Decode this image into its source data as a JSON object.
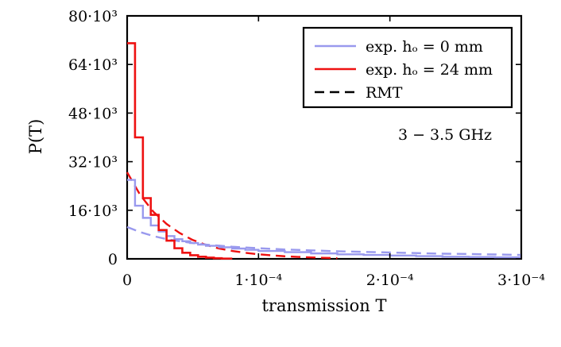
{
  "chart_data": {
    "type": "line",
    "xlabel": "transmission T",
    "ylabel": "P(T)",
    "xlim": [
      0,
      0.0003
    ],
    "ylim": [
      0,
      80000
    ],
    "x_ticks": [
      {
        "value": 0,
        "label": "0"
      },
      {
        "value": 0.0001,
        "label": "1·10⁻⁴"
      },
      {
        "value": 0.0002,
        "label": "2·10⁻⁴"
      },
      {
        "value": 0.0003,
        "label": "3·10⁻⁴"
      }
    ],
    "y_ticks": [
      {
        "value": 0,
        "label": "0"
      },
      {
        "value": 16000,
        "label": "16·10³"
      },
      {
        "value": 32000,
        "label": "32·10³"
      },
      {
        "value": 48000,
        "label": "48·10³"
      },
      {
        "value": 64000,
        "label": "64·10³"
      },
      {
        "value": 80000,
        "label": "80·10³"
      }
    ],
    "annotation": "3 − 3.5 GHz",
    "legend": {
      "placement": "top-right",
      "entries": [
        {
          "label": "exp. hₒ = 0 mm",
          "color": "#9999ee",
          "style": "solid"
        },
        {
          "label": "exp. hₒ = 24 mm",
          "color": "#ee1111",
          "style": "solid"
        },
        {
          "label": "RMT",
          "color": "#000000",
          "style": "dashed"
        }
      ]
    },
    "series": [
      {
        "name": "exp. hₒ = 0 mm",
        "kind": "step",
        "color": "#9999ee",
        "bin_edges": [
          0,
          6e-06,
          1.2e-05,
          1.8e-05,
          2.4e-05,
          3e-05,
          3.6e-05,
          4.2e-05,
          4.8e-05,
          5.4e-05,
          6e-05,
          7e-05,
          8e-05,
          9e-05,
          0.0001,
          0.00012,
          0.00014,
          0.00016,
          0.00018,
          0.0002,
          0.00022,
          0.00024,
          0.00026,
          0.00028,
          0.0003
        ],
        "values": [
          26000,
          17500,
          13500,
          11000,
          9000,
          7500,
          6500,
          5800,
          5200,
          4700,
          4300,
          3800,
          3400,
          3000,
          2600,
          2200,
          1800,
          1500,
          1300,
          1100,
          900,
          700,
          600,
          500
        ]
      },
      {
        "name": "exp. hₒ = 24 mm",
        "kind": "step",
        "color": "#ee1111",
        "bin_edges": [
          0,
          6e-06,
          1.2e-05,
          1.8e-05,
          2.4e-05,
          3e-05,
          3.6e-05,
          4.2e-05,
          4.8e-05,
          5.4e-05,
          6e-05,
          6.6e-05,
          7.2e-05,
          8e-05
        ],
        "values": [
          71000,
          40000,
          20000,
          14500,
          9500,
          6000,
          3500,
          2000,
          1200,
          700,
          400,
          200,
          100
        ]
      },
      {
        "name": "RMT (hₒ = 24 mm)",
        "kind": "dashed",
        "color": "#ee1111",
        "x": [
          0,
          4e-06,
          1e-05,
          2e-05,
          3e-05,
          4e-05,
          5e-05,
          6e-05,
          7e-05,
          8e-05,
          9e-05,
          0.0001,
          0.00011,
          0.00012,
          0.00013,
          0.00014,
          0.00015,
          0.00016
        ],
        "y": [
          28500,
          25500,
          21000,
          15500,
          11500,
          8500,
          6200,
          4600,
          3400,
          2600,
          2000,
          1500,
          1150,
          850,
          650,
          480,
          340,
          240
        ]
      },
      {
        "name": "RMT (hₒ = 0 mm)",
        "kind": "dashed",
        "color": "#9999ee",
        "x": [
          0,
          1e-05,
          2e-05,
          3e-05,
          4e-05,
          5e-05,
          6e-05,
          8e-05,
          0.0001,
          0.00012,
          0.00014,
          0.00016,
          0.00018,
          0.0002,
          0.00022,
          0.00024,
          0.00026,
          0.00028,
          0.0003
        ],
        "y": [
          10500,
          8800,
          7500,
          6500,
          5800,
          5200,
          4700,
          4000,
          3500,
          3100,
          2800,
          2500,
          2300,
          2100,
          1900,
          1700,
          1600,
          1450,
          1300
        ]
      }
    ]
  }
}
